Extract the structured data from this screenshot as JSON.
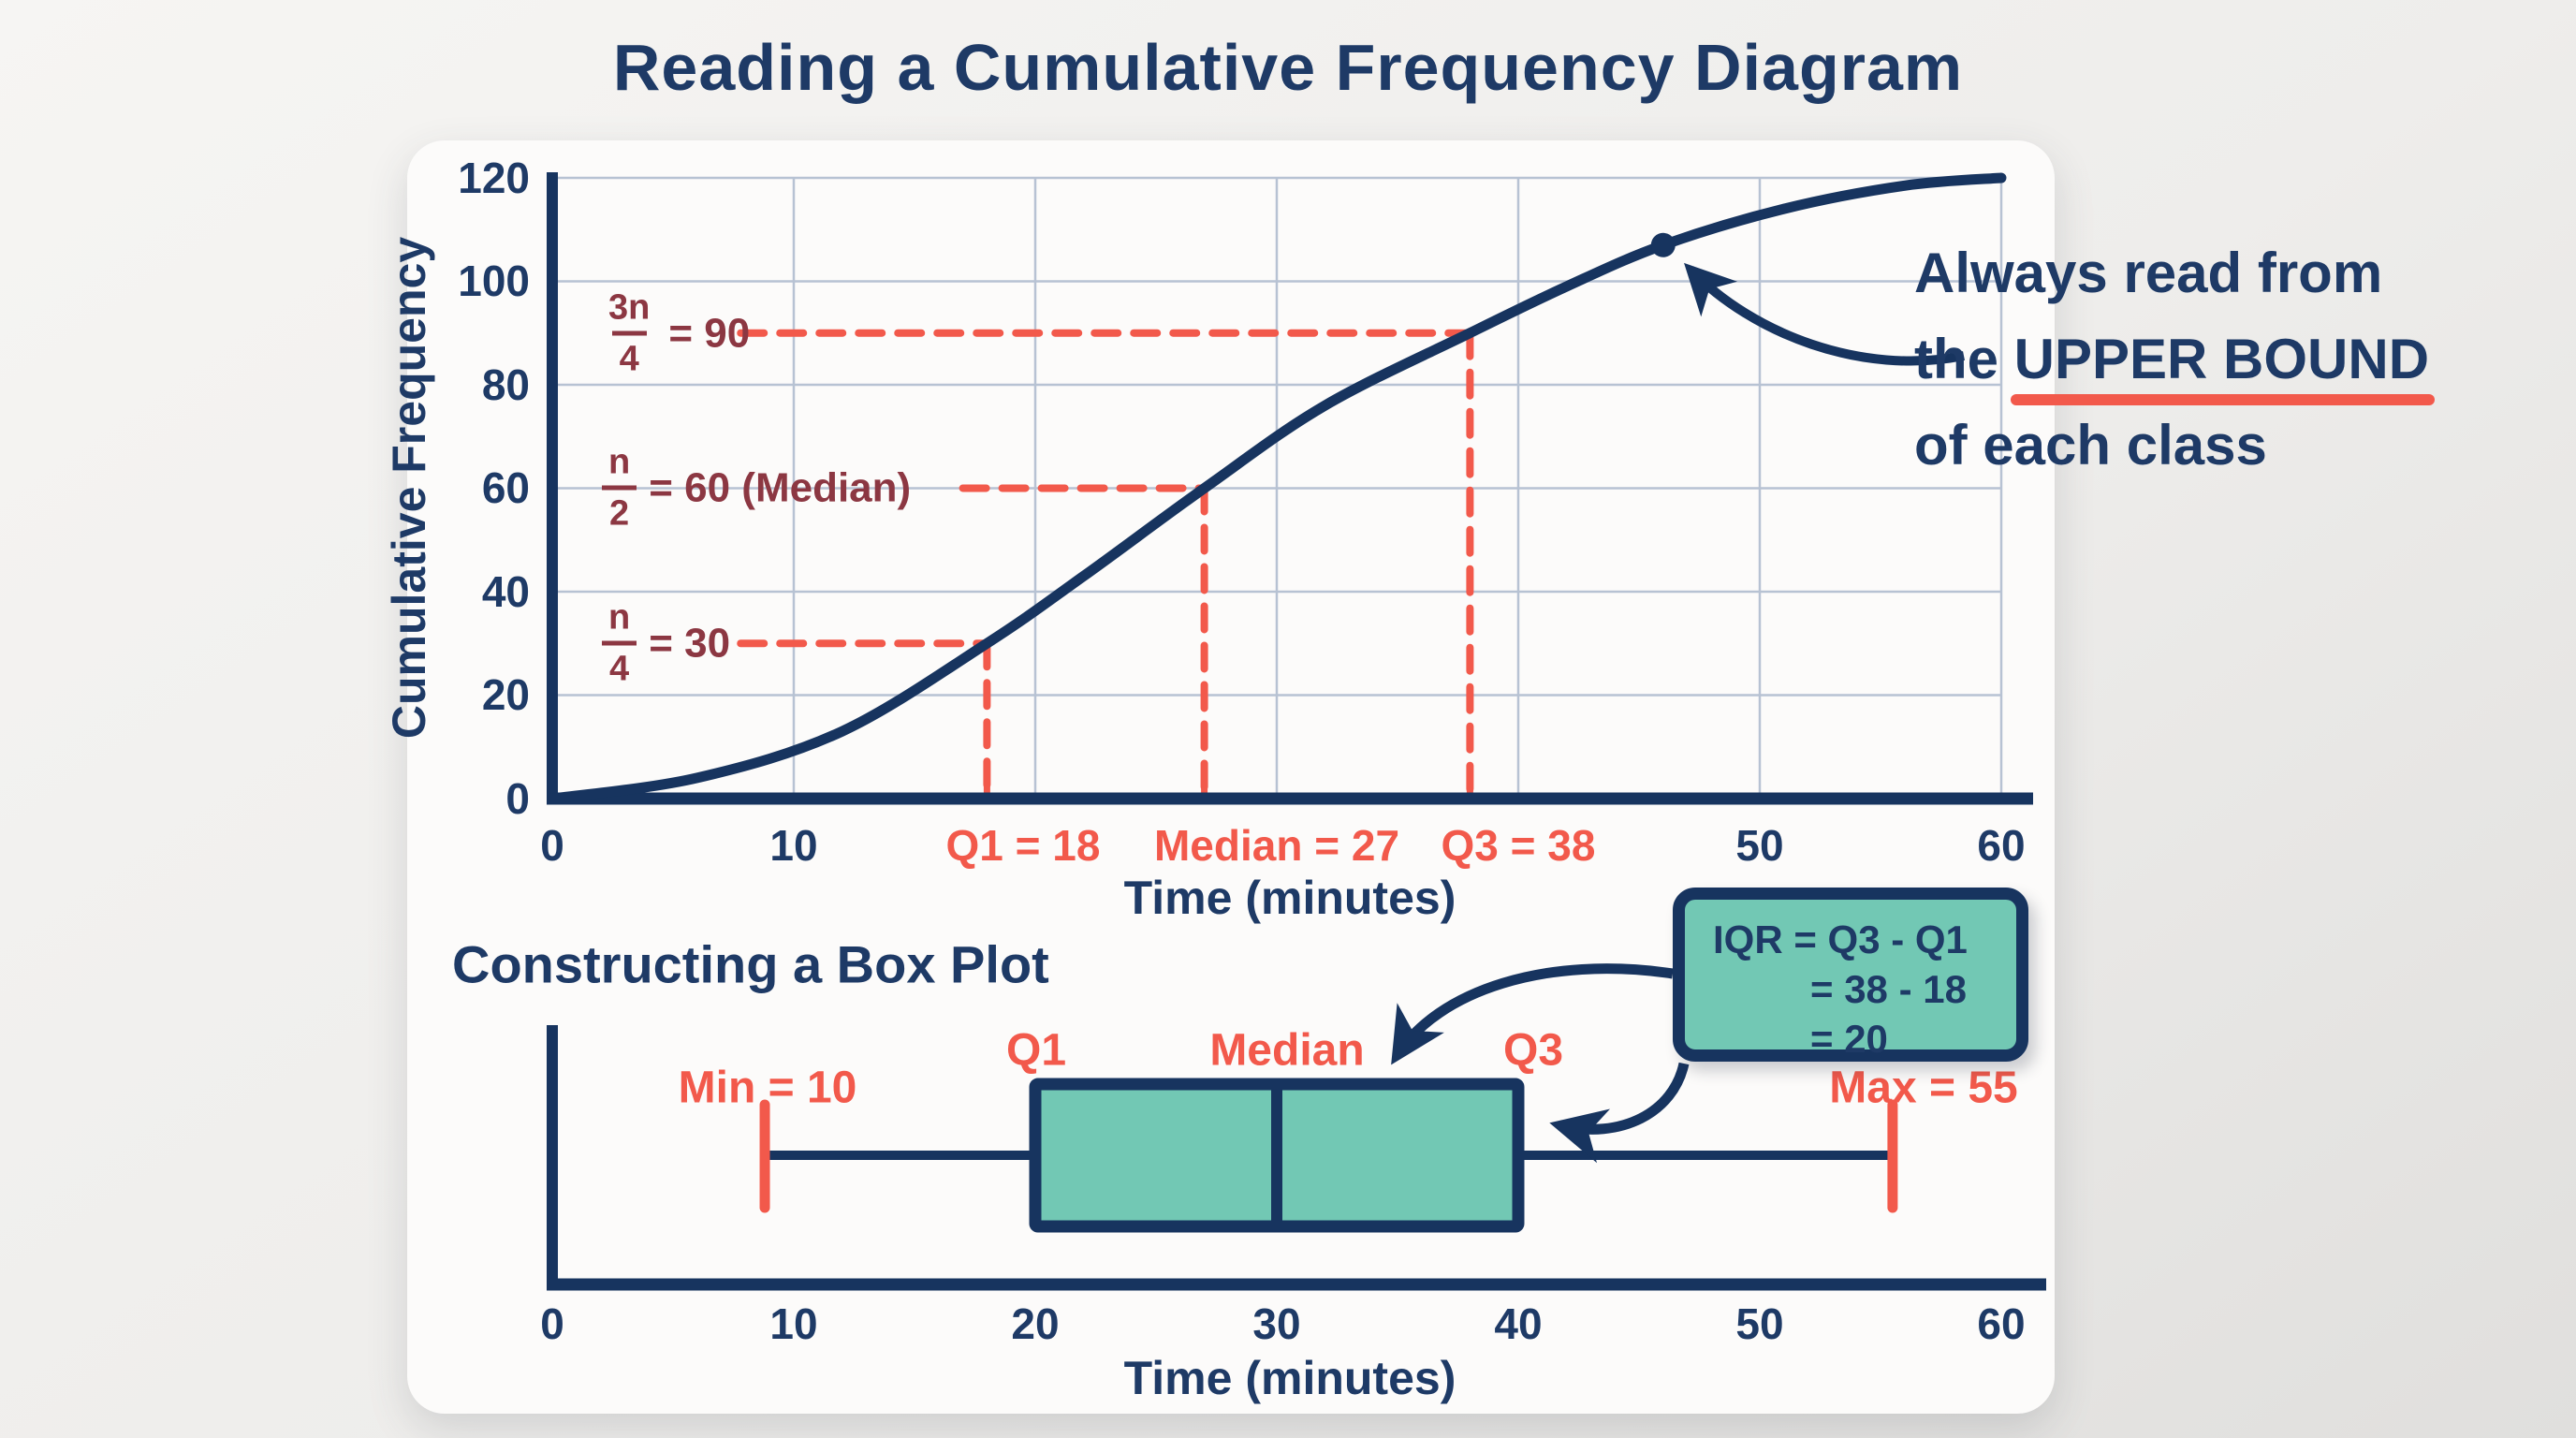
{
  "page": {
    "title": "Reading a Cumulative Frequency Diagram"
  },
  "colors": {
    "navy_text": "#1e3a66",
    "navy_line": "#17345f",
    "red": "#f2594b",
    "maroon": "#8c3742",
    "teal": "#72c8b4",
    "grid": "#b7c2d3",
    "card": "#fcfbfa"
  },
  "chart_data": [
    {
      "id": "cumulative-frequency-curve",
      "type": "line",
      "title": "Reading a Cumulative Frequency Diagram",
      "xlabel": "Time (minutes)",
      "ylabel": "Cumulative Frequency",
      "xlim": [
        0,
        60
      ],
      "ylim": [
        0,
        120
      ],
      "grid": {
        "on": true,
        "x_step": 10,
        "y_step": 20
      },
      "x_ticks": [
        {
          "v": 0,
          "label": "0"
        },
        {
          "v": 10,
          "label": "10"
        },
        {
          "v": 50,
          "label": "50"
        },
        {
          "v": 60,
          "label": "60"
        }
      ],
      "y_ticks": [
        0,
        20,
        40,
        60,
        80,
        100,
        120
      ],
      "curve": [
        [
          0,
          0
        ],
        [
          6,
          4
        ],
        [
          12,
          13
        ],
        [
          18,
          30
        ],
        [
          22,
          43
        ],
        [
          27,
          60
        ],
        [
          32,
          76
        ],
        [
          38,
          90
        ],
        [
          42,
          99
        ],
        [
          46,
          107
        ],
        [
          51,
          114
        ],
        [
          56,
          118.5
        ],
        [
          60,
          120
        ]
      ],
      "point_marker": {
        "x": 46,
        "y": 107
      },
      "guides": [
        {
          "frac_num": "n",
          "frac_den": "4",
          "rhs": "= 30",
          "y": 30,
          "x": 18,
          "dash_start_x": 7.8,
          "label_cx": 19.5,
          "axis_label": "Q1 = 18"
        },
        {
          "frac_num": "n",
          "frac_den": "2",
          "rhs": "= 60 (Median)",
          "y": 60,
          "x": 27,
          "dash_start_x": 17,
          "label_cx": 30,
          "axis_label": "Median = 27"
        },
        {
          "frac_num": "3n",
          "frac_den": "4",
          "rhs": "= 90",
          "y": 90,
          "x": 38,
          "dash_start_x": 7.8,
          "label_cx": 40,
          "axis_label": "Q3 = 38"
        }
      ],
      "annotation": {
        "line1": "Always read from",
        "line2_prefix": "the ",
        "line2_underlined": "UPPER BOUND",
        "line3": "of each class"
      }
    },
    {
      "id": "box-plot",
      "type": "boxplot",
      "section_title": "Constructing a Box Plot",
      "xlabel": "Time (minutes)",
      "xlim": [
        0,
        60
      ],
      "x_ticks": [
        0,
        10,
        20,
        30,
        40,
        50,
        60
      ],
      "stats": {
        "min": 10,
        "q1": 18,
        "median": 27,
        "q3": 38,
        "max": 55,
        "iqr": 20
      },
      "drawn": {
        "min": 8.8,
        "q1": 20,
        "median": 30,
        "q3": 40,
        "max": 55.5
      },
      "labels": {
        "min": "Min = 10",
        "q1": "Q1",
        "median": "Median",
        "q3": "Q3",
        "max": "Max = 55"
      },
      "callout": {
        "line1": "IQR = Q3 - Q1",
        "line2": "= 38 - 18",
        "line3": "= 20"
      }
    }
  ]
}
